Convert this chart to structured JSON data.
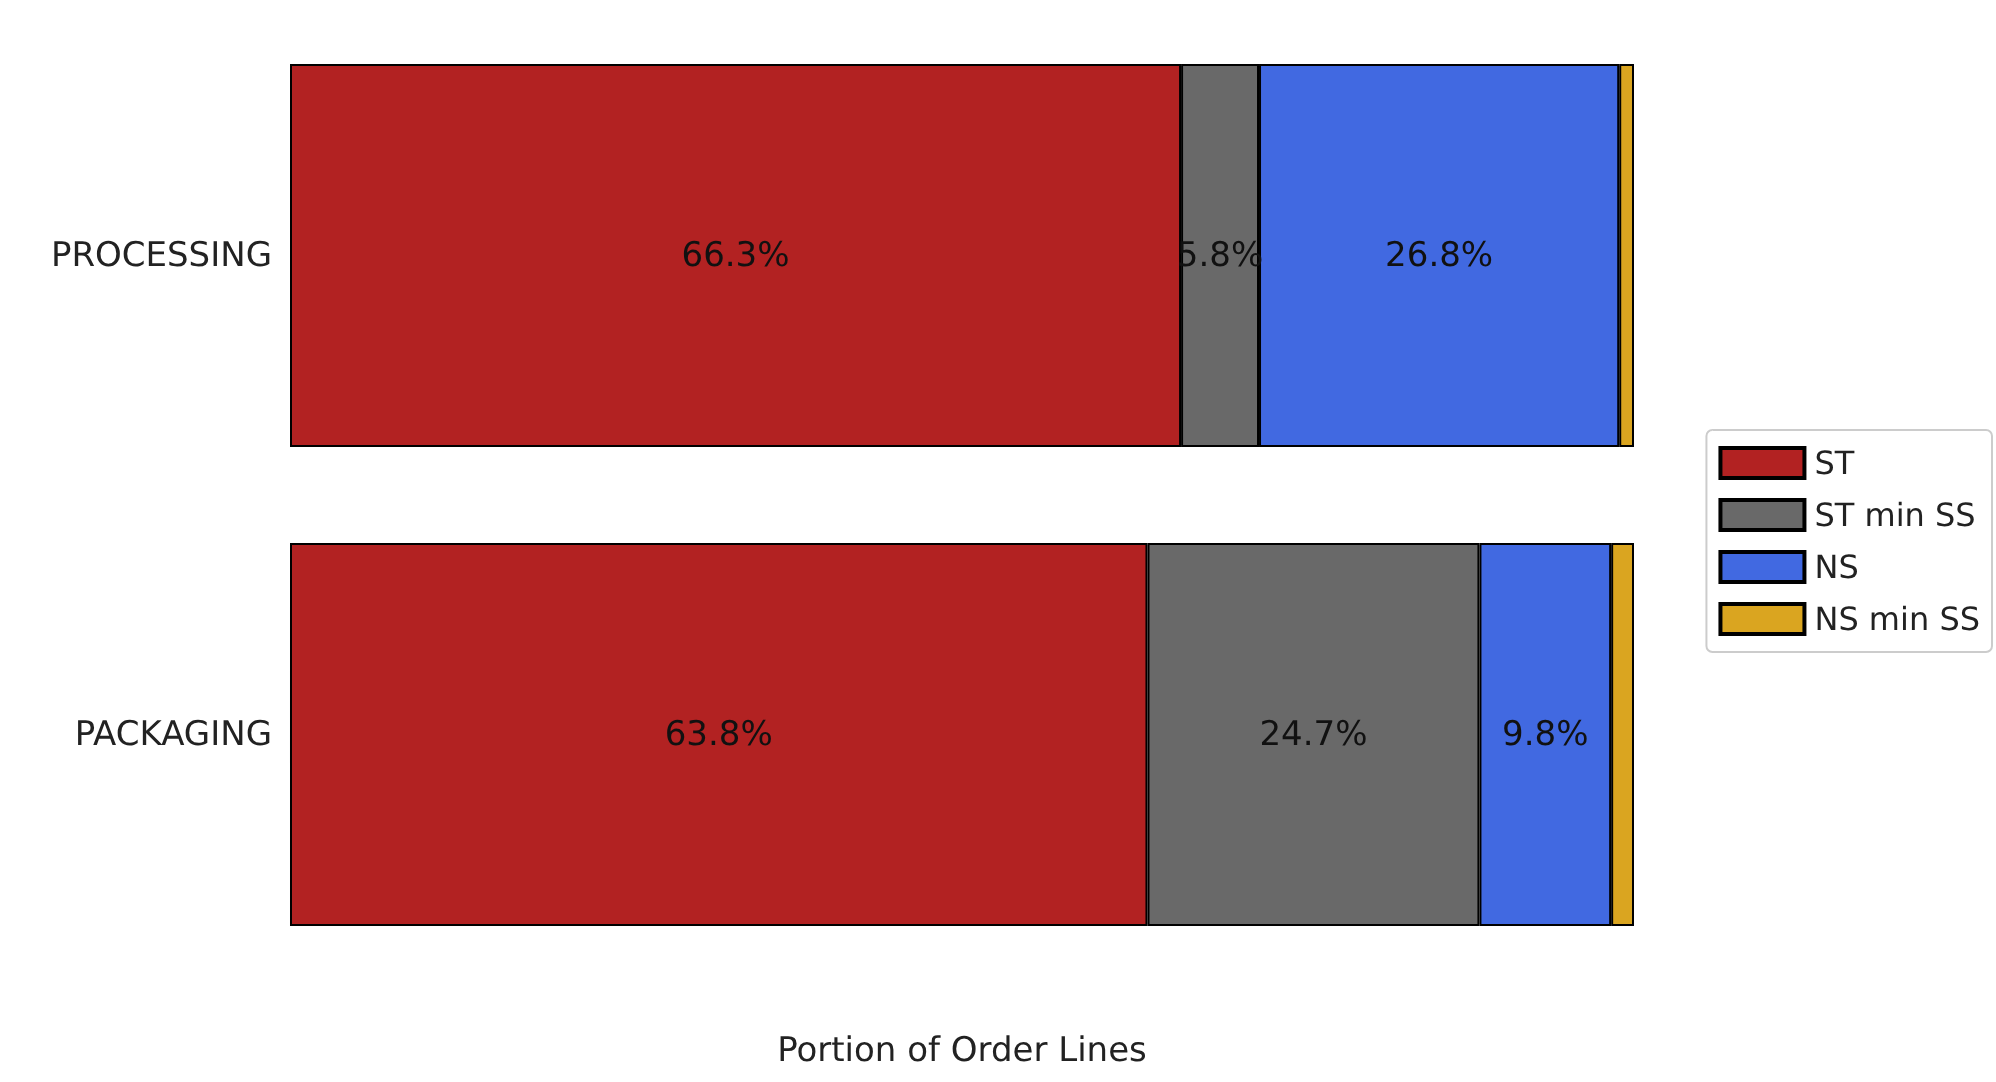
{
  "chart_data": {
    "type": "bar",
    "orientation": "horizontal",
    "stacked": true,
    "xlabel": "Portion of Order Lines",
    "categories": [
      "PROCESSING",
      "PACKAGING"
    ],
    "xlim": [
      0,
      100
    ],
    "tick_labels": "y",
    "grid": false,
    "legend": "right",
    "series": [
      {
        "name": "ST",
        "color": "#b22222",
        "values": [
          66.3,
          63.8
        ],
        "value_labels": [
          "66.3%",
          "63.8%"
        ]
      },
      {
        "name": "ST min SS",
        "color": "#696969",
        "values": [
          5.8,
          24.7
        ],
        "value_labels": [
          "5.8%",
          "24.7%"
        ]
      },
      {
        "name": "NS",
        "color": "#4169e1",
        "values": [
          26.8,
          9.8
        ],
        "value_labels": [
          "26.8%",
          "9.8%"
        ]
      },
      {
        "name": "NS min SS",
        "color": "#daa520",
        "values": [
          1.1,
          1.7
        ],
        "value_labels": [
          null,
          null
        ]
      }
    ]
  }
}
